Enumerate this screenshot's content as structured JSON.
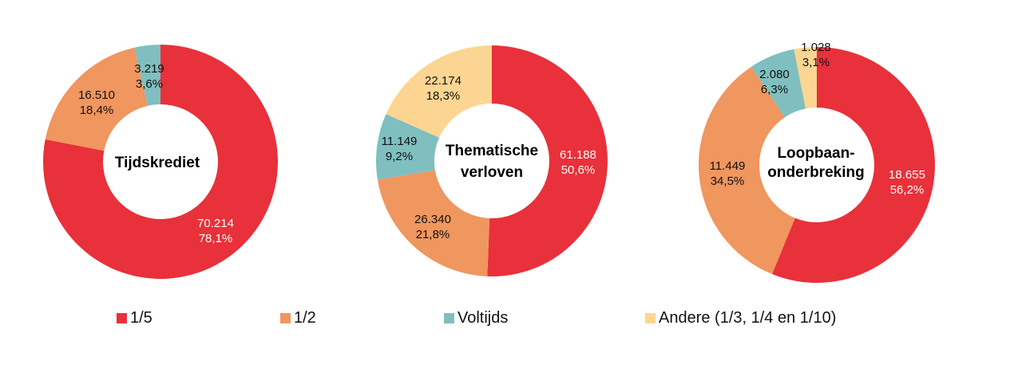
{
  "chart_data": [
    {
      "type": "pie",
      "variant": "donut",
      "title": "Tijdskrediet",
      "categories": [
        "1/5",
        "1/2",
        "Voltijds",
        "Andere (1/3, 1/4 en 1/10)"
      ],
      "values": [
        70214,
        16510,
        3219,
        0
      ],
      "labels": [
        "70.214\n78,1%",
        "16.510\n18,4%",
        "3.219\n3,6%",
        ""
      ],
      "percentages": [
        78.1,
        18.4,
        3.6,
        0
      ]
    },
    {
      "type": "pie",
      "variant": "donut",
      "title": "Thematische verloven",
      "categories": [
        "1/5",
        "1/2",
        "Voltijds",
        "Andere (1/3, 1/4 en 1/10)"
      ],
      "values": [
        61188,
        26340,
        11149,
        22174
      ],
      "labels": [
        "61.188\n50,6%",
        "26.340\n21,8%",
        "11.149\n9,2%",
        "22.174\n18,3%"
      ],
      "percentages": [
        50.6,
        21.8,
        9.2,
        18.3
      ]
    },
    {
      "type": "pie",
      "variant": "donut",
      "title": "Loopbaanonderbreking",
      "categories": [
        "1/5",
        "1/2",
        "Voltijds",
        "Andere (1/3, 1/4 en 1/10)"
      ],
      "values": [
        18655,
        11449,
        2080,
        1028
      ],
      "labels": [
        "18.655\n56,2%",
        "11.449\n34,5%",
        "2.080\n6,3%",
        "1.028\n3,1%"
      ],
      "percentages": [
        56.2,
        34.5,
        6.3,
        3.1
      ]
    }
  ],
  "colors": {
    "1/5": "#e8313a",
    "1/2": "#f0965f",
    "Voltijds": "#7fbfbf",
    "Andere": "#fdd592"
  },
  "charts": [
    {
      "center_lines": [
        "Tijdskrediet"
      ],
      "slices": [
        {
          "value_text": "70.214",
          "pct_text": "78,1%"
        },
        {
          "value_text": "16.510",
          "pct_text": "18,4%"
        },
        {
          "value_text": "3.219",
          "pct_text": "3,6%"
        }
      ]
    },
    {
      "center_lines": [
        "Thematische",
        "verloven"
      ],
      "slices": [
        {
          "value_text": "61.188",
          "pct_text": "50,6%"
        },
        {
          "value_text": "26.340",
          "pct_text": "21,8%"
        },
        {
          "value_text": "11.149",
          "pct_text": "9,2%"
        },
        {
          "value_text": "22.174",
          "pct_text": "18,3%"
        }
      ]
    },
    {
      "center_lines": [
        "Loopbaan-",
        "onderbreking"
      ],
      "slices": [
        {
          "value_text": "18.655",
          "pct_text": "56,2%"
        },
        {
          "value_text": "11.449",
          "pct_text": "34,5%"
        },
        {
          "value_text": "2.080",
          "pct_text": "6,3%"
        },
        {
          "value_text": "1.028",
          "pct_text": "3,1%"
        }
      ]
    }
  ],
  "legend": [
    {
      "label": "1/5",
      "color": "#e8313a"
    },
    {
      "label": "1/2",
      "color": "#f0965f"
    },
    {
      "label": "Voltijds",
      "color": "#7fbfbf"
    },
    {
      "label": "Andere (1/3, 1/4 en 1/10)",
      "color": "#fdd592"
    }
  ]
}
